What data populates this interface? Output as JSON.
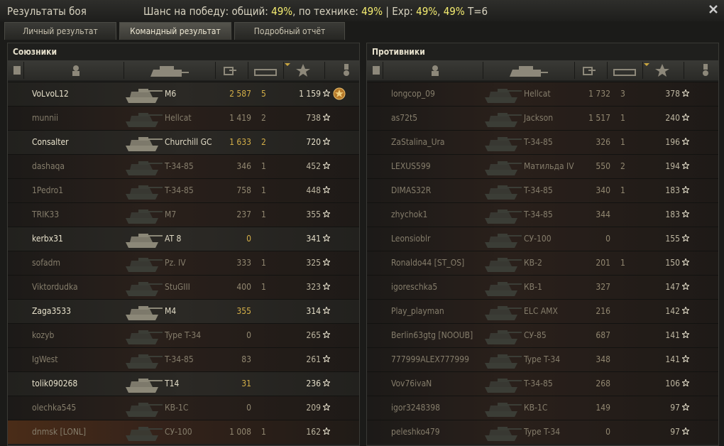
{
  "header": {
    "title": "Результаты боя",
    "chance": [
      "Шанс на победу: общий: ",
      "49%",
      ", по технике: ",
      "49%",
      " | Exp: ",
      "49%",
      ", ",
      "49%",
      " T=6"
    ]
  },
  "tabs": [
    "Личный результат",
    "Командный результат",
    "Подробный отчёт"
  ],
  "teams": [
    {
      "title": "Союзники",
      "rows": [
        {
          "name": "VoLvoL12",
          "tank": "M6",
          "damage": "2 587",
          "kills": 5,
          "xp": "1 159",
          "alive": true,
          "medal": true
        },
        {
          "name": "munnii",
          "tank": "Hellcat",
          "damage": "1 419",
          "kills": 2,
          "xp": "738",
          "alive": false
        },
        {
          "name": "Consalter",
          "tank": "Churchill GC",
          "damage": "1 633",
          "kills": 2,
          "xp": "720",
          "alive": true
        },
        {
          "name": "dashaqa",
          "tank": "T-34-85",
          "damage": "346",
          "kills": 1,
          "xp": "452",
          "alive": false
        },
        {
          "name": "1Pedro1",
          "tank": "T-34-85",
          "damage": "758",
          "kills": 1,
          "xp": "448",
          "alive": false
        },
        {
          "name": "TRIK33",
          "tank": "M7",
          "damage": "237",
          "kills": 1,
          "xp": "355",
          "alive": false
        },
        {
          "name": "kerbx31",
          "tank": "AT 8",
          "damage": "0",
          "kills": null,
          "xp": "341",
          "alive": true
        },
        {
          "name": "sofadm",
          "tank": "Pz. IV",
          "damage": "333",
          "kills": 1,
          "xp": "325",
          "alive": false
        },
        {
          "name": "Viktordudka",
          "tank": "StuGIII",
          "damage": "400",
          "kills": 1,
          "xp": "323",
          "alive": false
        },
        {
          "name": "Zaga3533",
          "tank": "M4",
          "damage": "355",
          "kills": null,
          "xp": "314",
          "alive": true
        },
        {
          "name": "kozyb",
          "tank": "Type T-34",
          "damage": "0",
          "kills": null,
          "xp": "265",
          "alive": false
        },
        {
          "name": "IgWest",
          "tank": "T-34-85",
          "damage": "83",
          "kills": null,
          "xp": "261",
          "alive": false
        },
        {
          "name": "tolik090268",
          "tank": "T14",
          "damage": "31",
          "kills": null,
          "xp": "236",
          "alive": true
        },
        {
          "name": "olechka545",
          "tank": "КВ-1С",
          "damage": "0",
          "kills": null,
          "xp": "209",
          "alive": false
        },
        {
          "name": "dnmsk [LONL]",
          "tank": "СУ-100",
          "damage": "1 008",
          "kills": 1,
          "xp": "162",
          "alive": false,
          "self": true
        }
      ]
    },
    {
      "title": "Противники",
      "rows": [
        {
          "name": "longcop_09",
          "tank": "Hellcat",
          "damage": "1 732",
          "kills": 3,
          "xp": "378",
          "alive": false
        },
        {
          "name": "as72t5",
          "tank": "Jackson",
          "damage": "1 517",
          "kills": 1,
          "xp": "240",
          "alive": false
        },
        {
          "name": "ZaStalina_Ura",
          "tank": "T-34-85",
          "damage": "326",
          "kills": 1,
          "xp": "196",
          "alive": false
        },
        {
          "name": "LEXUS599",
          "tank": "Матильда IV",
          "damage": "550",
          "kills": 2,
          "xp": "194",
          "alive": false
        },
        {
          "name": "DIMAS32R",
          "tank": "T-34-85",
          "damage": "340",
          "kills": 1,
          "xp": "183",
          "alive": false
        },
        {
          "name": "zhychok1",
          "tank": "T-34-85",
          "damage": "344",
          "kills": null,
          "xp": "183",
          "alive": false
        },
        {
          "name": "Leonsioblr",
          "tank": "СУ-100",
          "damage": "0",
          "kills": null,
          "xp": "155",
          "alive": false
        },
        {
          "name": "Ronaldo44 [ST_OS]",
          "tank": "КВ-2",
          "damage": "201",
          "kills": 1,
          "xp": "150",
          "alive": false
        },
        {
          "name": "igoreschka5",
          "tank": "КВ-1",
          "damage": "327",
          "kills": null,
          "xp": "147",
          "alive": false
        },
        {
          "name": "Play_playman",
          "tank": "ELC AMX",
          "damage": "216",
          "kills": null,
          "xp": "142",
          "alive": false
        },
        {
          "name": "Berlin63gtg [NOOUB]",
          "tank": "СУ-85",
          "damage": "687",
          "kills": null,
          "xp": "141",
          "alive": false
        },
        {
          "name": "777999ALEX777999",
          "tank": "Type T-34",
          "damage": "348",
          "kills": null,
          "xp": "141",
          "alive": false
        },
        {
          "name": "Vov76ivaN",
          "tank": "T-34-85",
          "damage": "268",
          "kills": null,
          "xp": "106",
          "alive": false
        },
        {
          "name": "igor3248398",
          "tank": "КВ-1С",
          "damage": "149",
          "kills": null,
          "xp": "97",
          "alive": false
        },
        {
          "name": "peleshko479",
          "tank": "Type T-34",
          "damage": "0",
          "kills": null,
          "xp": "97",
          "alive": false
        }
      ]
    }
  ]
}
